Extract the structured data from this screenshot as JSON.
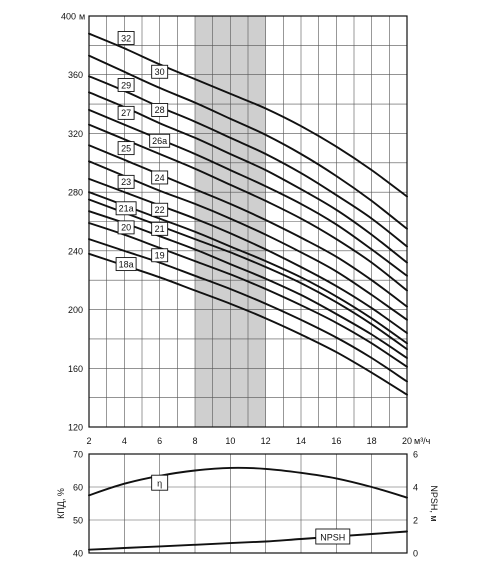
{
  "chart_data": [
    {
      "type": "line",
      "title": "",
      "xlim": [
        2,
        20
      ],
      "ylim": [
        120,
        400
      ],
      "x_ticks": [
        2,
        4,
        6,
        8,
        10,
        12,
        14,
        16,
        18,
        20
      ],
      "y_ticks": [
        120,
        160,
        200,
        240,
        280,
        320,
        360,
        400
      ],
      "x_unit_label": "м³/ч",
      "y_unit_label": "м",
      "grid": true,
      "shaded_x_range": [
        8,
        12
      ],
      "x": [
        2,
        4,
        6,
        8,
        10,
        12,
        14,
        16,
        18,
        20
      ],
      "series": [
        {
          "name": "32",
          "values": [
            388,
            378,
            367,
            357,
            347,
            337,
            325,
            311,
            295,
            277
          ]
        },
        {
          "name": "30",
          "values": [
            373,
            362,
            351,
            341,
            330,
            319,
            306,
            291,
            274,
            255
          ]
        },
        {
          "name": "29",
          "values": [
            359,
            349,
            338,
            328,
            317,
            306,
            293,
            278,
            262,
            243
          ]
        },
        {
          "name": "28",
          "values": [
            348,
            338,
            327,
            317,
            306,
            295,
            282,
            268,
            251,
            232
          ]
        },
        {
          "name": "27",
          "values": [
            336,
            326,
            316,
            306,
            295,
            284,
            272,
            258,
            241,
            223
          ]
        },
        {
          "name": "26a",
          "values": [
            326,
            316,
            306,
            296,
            285,
            274,
            262,
            248,
            232,
            213
          ]
        },
        {
          "name": "25",
          "values": [
            312,
            302,
            292,
            282,
            272,
            261,
            249,
            236,
            220,
            202
          ]
        },
        {
          "name": "24",
          "values": [
            301,
            291,
            281,
            272,
            262,
            251,
            239,
            226,
            210,
            193
          ]
        },
        {
          "name": "23",
          "values": [
            289,
            280,
            271,
            262,
            252,
            241,
            229,
            216,
            201,
            184
          ]
        },
        {
          "name": "22",
          "values": [
            280,
            271,
            262,
            253,
            243,
            233,
            222,
            209,
            194,
            177
          ]
        },
        {
          "name": "21a",
          "values": [
            275,
            266,
            257,
            248,
            239,
            229,
            218,
            205,
            190,
            173
          ]
        },
        {
          "name": "21",
          "values": [
            267,
            259,
            250,
            241,
            231,
            221,
            210,
            197,
            183,
            167
          ]
        },
        {
          "name": "20",
          "values": [
            259,
            251,
            242,
            233,
            224,
            214,
            203,
            191,
            177,
            161
          ]
        },
        {
          "name": "19",
          "values": [
            248,
            240,
            232,
            223,
            214,
            204,
            193,
            181,
            167,
            151
          ]
        },
        {
          "name": "18a",
          "values": [
            238,
            230,
            222,
            213,
            204,
            194,
            183,
            171,
            157,
            142
          ]
        }
      ],
      "curve_labels": [
        {
          "text": "32",
          "x": 4.1,
          "y": 385
        },
        {
          "text": "30",
          "x": 6.0,
          "y": 362
        },
        {
          "text": "29",
          "x": 4.1,
          "y": 353
        },
        {
          "text": "28",
          "x": 6.0,
          "y": 336
        },
        {
          "text": "27",
          "x": 4.1,
          "y": 334
        },
        {
          "text": "26a",
          "x": 6.0,
          "y": 315
        },
        {
          "text": "25",
          "x": 4.1,
          "y": 310
        },
        {
          "text": "24",
          "x": 6.0,
          "y": 290
        },
        {
          "text": "23",
          "x": 4.1,
          "y": 287
        },
        {
          "text": "21a",
          "x": 4.1,
          "y": 269
        },
        {
          "text": "22",
          "x": 6.0,
          "y": 268
        },
        {
          "text": "20",
          "x": 4.1,
          "y": 256
        },
        {
          "text": "21",
          "x": 6.0,
          "y": 255
        },
        {
          "text": "19",
          "x": 6.0,
          "y": 237
        },
        {
          "text": "18a",
          "x": 4.1,
          "y": 231
        }
      ]
    },
    {
      "type": "line",
      "title": "",
      "xlim": [
        2,
        20
      ],
      "ylim": [
        40,
        70
      ],
      "y2lim": [
        0,
        6
      ],
      "y_ticks": [
        40,
        50,
        60,
        70
      ],
      "y2_ticks": [
        0,
        2,
        4,
        6
      ],
      "ylabel": "КПД, %",
      "y2label": "NPSH, м",
      "grid": true,
      "x": [
        2,
        4,
        6,
        8,
        10,
        12,
        14,
        16,
        18,
        20
      ],
      "series": [
        {
          "name": "η",
          "axis": "left",
          "values": [
            57.5,
            61.0,
            63.4,
            65.0,
            65.8,
            65.5,
            64.3,
            62.6,
            60.0,
            56.8
          ]
        },
        {
          "name": "NPSH",
          "axis": "right",
          "values": [
            0.2,
            0.3,
            0.4,
            0.5,
            0.6,
            0.7,
            0.85,
            1.0,
            1.15,
            1.3
          ]
        }
      ],
      "curve_labels": [
        {
          "text": "η",
          "x": 6.0,
          "y": 61.3,
          "axis": "left"
        },
        {
          "text": "NPSH",
          "x": 15.8,
          "y": 1.0,
          "axis": "right"
        }
      ]
    }
  ]
}
